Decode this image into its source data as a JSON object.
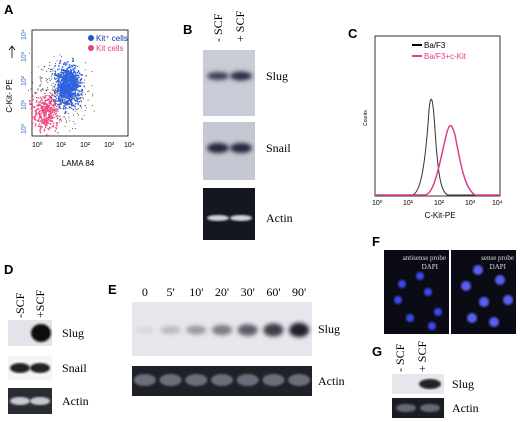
{
  "A": {
    "label": "A",
    "y_axis": "C-Kit- PE",
    "x_axis": "LAMA 84",
    "y_ticks": [
      "10⁰",
      "10¹",
      "10²",
      "10³",
      "10⁴"
    ],
    "x_ticks": [
      "10⁰",
      "10¹",
      "10²",
      "10³",
      "10⁴"
    ],
    "legend": [
      "Kit⁺ cells",
      "Kit cells"
    ]
  },
  "B": {
    "label": "B",
    "columns": [
      "- SCF",
      "+ SCF"
    ],
    "rows": [
      "Slug",
      "Snail",
      "Actin"
    ]
  },
  "C": {
    "label": "C",
    "legend": [
      "Ba/F3",
      "Ba/F3+c-Kit"
    ],
    "y_axis": "Counts",
    "x_ticks": [
      "10⁰",
      "10¹",
      "10²",
      "10³",
      "10⁴"
    ],
    "x_axis": "C-Kit-PE"
  },
  "D": {
    "label": "D",
    "columns": [
      "-SCF",
      "+SCF"
    ],
    "rows": [
      "Slug",
      "Snail",
      "Actin"
    ]
  },
  "E": {
    "label": "E",
    "times": [
      "0",
      "5'",
      "10'",
      "20'",
      "30'",
      "60'",
      "90'"
    ],
    "rows": [
      "Slug",
      "Actin"
    ]
  },
  "F": {
    "label": "F",
    "images": [
      {
        "caption": [
          "antisense probe",
          "DAPI"
        ]
      },
      {
        "caption": [
          "sense probe",
          "DAPI"
        ]
      }
    ]
  },
  "G": {
    "label": "G",
    "columns": [
      "- SCF",
      "+ SCF"
    ],
    "rows": [
      "Slug",
      "Actin"
    ]
  }
}
